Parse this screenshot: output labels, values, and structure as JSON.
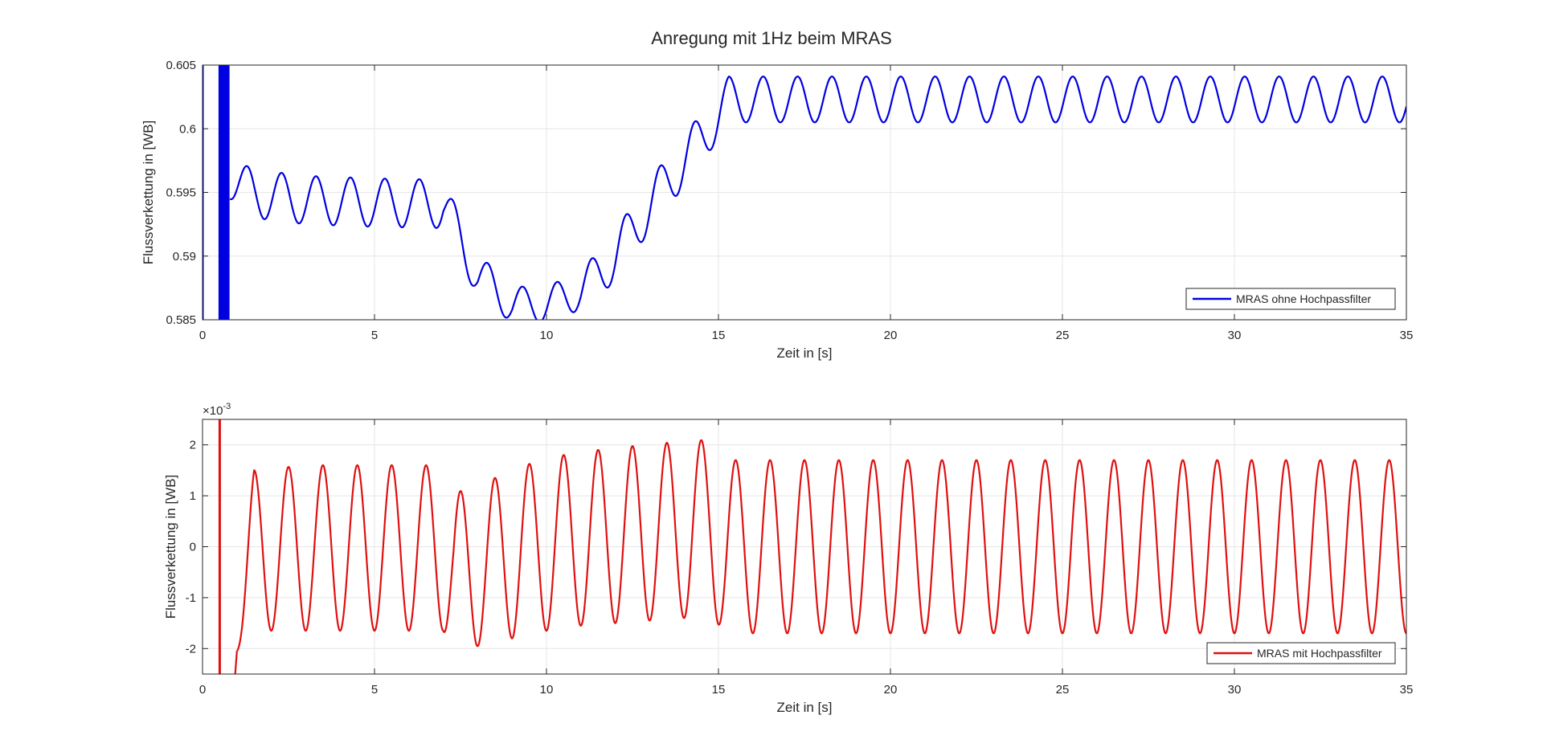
{
  "figure": {
    "title": "Anregung mit 1Hz beim MRAS"
  },
  "colors": {
    "background": "#ffffff",
    "axis": "#262626",
    "grid": "#e6e6e6",
    "series_top": "#0000e0",
    "series_bottom": "#e01010"
  },
  "chart_data": [
    {
      "type": "line",
      "title": "Anregung mit 1Hz beim MRAS",
      "xlabel": "Zeit in [s]",
      "ylabel": "Flussverkettung in [WB]",
      "xlim": [
        0,
        35
      ],
      "ylim": [
        0.585,
        0.605
      ],
      "xticks": [
        0,
        5,
        10,
        15,
        20,
        25,
        30,
        35
      ],
      "xtick_labels": [
        "0",
        "5",
        "10",
        "15",
        "20",
        "25",
        "30",
        "35"
      ],
      "yticks": [
        0.585,
        0.59,
        0.595,
        0.6,
        0.605
      ],
      "ytick_labels": [
        "0.585",
        "0.59",
        "0.595",
        "0.6",
        "0.605"
      ],
      "grid": true,
      "legend_position": "bottom-right",
      "series": [
        {
          "name": "MRAS ohne Hochpassfilter",
          "color": "#0000e0",
          "frequency_hz": 1,
          "startup_transient_time_range": [
            0.5,
            0.75
          ],
          "envelope": {
            "t": [
              0.8,
              1.5,
              3.0,
              5.0,
              7.0,
              8.0,
              9.0,
              10.0,
              11.0,
              12.0,
              13.0,
              14.0,
              14.5,
              15.3,
              35.0
            ],
            "max": [
              0.5977,
              0.5968,
              0.5963,
              0.5961,
              0.596,
              0.5902,
              0.5876,
              0.5876,
              0.5888,
              0.592,
              0.596,
              0.5995,
              0.6012,
              0.6041,
              0.6041
            ],
            "min": [
              0.5945,
              0.593,
              0.5925,
              0.5923,
              0.5922,
              0.5868,
              0.5848,
              0.5848,
              0.5858,
              0.588,
              0.592,
              0.5955,
              0.5972,
              0.6005,
              0.6005
            ]
          }
        }
      ]
    },
    {
      "type": "line",
      "xlabel": "Zeit in [s]",
      "ylabel": "Flussverkettung in [WB]",
      "y_multiplier_label": "×10",
      "y_multiplier_exponent": "-3",
      "xlim": [
        0,
        35
      ],
      "ylim": [
        -2.5,
        2.5
      ],
      "xticks": [
        0,
        5,
        10,
        15,
        20,
        25,
        30,
        35
      ],
      "xtick_labels": [
        "0",
        "5",
        "10",
        "15",
        "20",
        "25",
        "30",
        "35"
      ],
      "yticks": [
        -2,
        -1,
        0,
        1,
        2
      ],
      "ytick_labels": [
        "-2",
        "-1",
        "0",
        "1",
        "2"
      ],
      "grid": true,
      "legend_position": "bottom-right",
      "series": [
        {
          "name": "MRAS mit Hochpassfilter",
          "color": "#e01010",
          "frequency_hz": 1,
          "startup_spike_time": 0.5,
          "envelope": {
            "t": [
              1.0,
              1.5,
              3.0,
              7.0,
              7.3,
              8.0,
              9.0,
              10.0,
              11.0,
              12.0,
              13.0,
              14.0,
              14.8,
              15.2,
              35.0
            ],
            "max": [
              -0.9,
              1.5,
              1.6,
              1.6,
              1.05,
              1.2,
              1.5,
              1.75,
              1.85,
              1.95,
              2.0,
              2.08,
              2.1,
              1.7,
              1.7
            ],
            "min": [
              -2.05,
              -1.65,
              -1.65,
              -1.65,
              -2.2,
              -1.95,
              -1.8,
              -1.65,
              -1.55,
              -1.5,
              -1.45,
              -1.4,
              -1.35,
              -1.7,
              -1.7
            ]
          }
        }
      ]
    }
  ]
}
